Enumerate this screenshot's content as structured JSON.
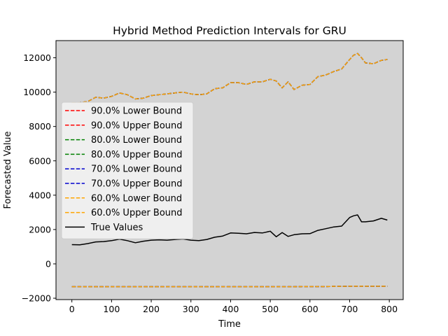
{
  "chart_data": {
    "type": "line",
    "title": "Hybrid Method Prediction Intervals for GRU",
    "xlabel": "Time",
    "ylabel": "Forecasted Value",
    "xlim": [
      -40,
      835
    ],
    "ylim": [
      -2080,
      13000
    ],
    "xticks": [
      0,
      100,
      200,
      300,
      400,
      500,
      600,
      700,
      800
    ],
    "yticks": [
      -2000,
      0,
      2000,
      4000,
      6000,
      8000,
      10000,
      12000
    ],
    "background": "#d3d3d3",
    "grid": false,
    "legend_position": "center-left",
    "x": [
      0,
      20,
      40,
      60,
      80,
      100,
      120,
      140,
      160,
      180,
      200,
      220,
      240,
      260,
      280,
      300,
      320,
      340,
      360,
      380,
      400,
      420,
      440,
      460,
      480,
      500,
      515,
      530,
      545,
      560,
      580,
      600,
      620,
      640,
      660,
      680,
      700,
      710,
      720,
      730,
      740,
      760,
      780,
      795
    ],
    "series": [
      {
        "name": "90.0% Lower Bound",
        "color": "#ff0000",
        "style": "dashed",
        "values": [
          -1330,
          -1330,
          -1330,
          -1330,
          -1330,
          -1330,
          -1330,
          -1330,
          -1330,
          -1330,
          -1330,
          -1330,
          -1330,
          -1330,
          -1330,
          -1330,
          -1330,
          -1330,
          -1330,
          -1330,
          -1330,
          -1330,
          -1330,
          -1330,
          -1330,
          -1330,
          -1330,
          -1330,
          -1330,
          -1330,
          -1320,
          -1320,
          -1320,
          -1320,
          -1310,
          -1310,
          -1300,
          -1300,
          -1300,
          -1300,
          -1300,
          -1300,
          -1300,
          -1300
        ]
      },
      {
        "name": "90.0% Upper Bound",
        "color": "#ff0000",
        "style": "dashed",
        "values": [
          9400,
          9400,
          9450,
          9700,
          9650,
          9750,
          9950,
          9850,
          9600,
          9650,
          9800,
          9850,
          9900,
          9950,
          10000,
          9900,
          9850,
          9900,
          10200,
          10250,
          10550,
          10550,
          10450,
          10600,
          10600,
          10750,
          10650,
          10250,
          10600,
          10150,
          10400,
          10450,
          10900,
          11000,
          11200,
          11350,
          11900,
          12150,
          12250,
          12000,
          11700,
          11650,
          11850,
          11900
        ]
      },
      {
        "name": "80.0% Lower Bound",
        "color": "#008000",
        "style": "dashed",
        "values": [
          -1330,
          -1330,
          -1330,
          -1330,
          -1330,
          -1330,
          -1330,
          -1330,
          -1330,
          -1330,
          -1330,
          -1330,
          -1330,
          -1330,
          -1330,
          -1330,
          -1330,
          -1330,
          -1330,
          -1330,
          -1330,
          -1330,
          -1330,
          -1330,
          -1330,
          -1330,
          -1330,
          -1330,
          -1330,
          -1330,
          -1320,
          -1320,
          -1320,
          -1320,
          -1310,
          -1310,
          -1300,
          -1300,
          -1300,
          -1300,
          -1300,
          -1300,
          -1300,
          -1300
        ]
      },
      {
        "name": "80.0% Upper Bound",
        "color": "#008000",
        "style": "dashed",
        "values": [
          9400,
          9400,
          9450,
          9700,
          9650,
          9750,
          9950,
          9850,
          9600,
          9650,
          9800,
          9850,
          9900,
          9950,
          10000,
          9900,
          9850,
          9900,
          10200,
          10250,
          10550,
          10550,
          10450,
          10600,
          10600,
          10750,
          10650,
          10250,
          10600,
          10150,
          10400,
          10450,
          10900,
          11000,
          11200,
          11350,
          11900,
          12150,
          12250,
          12000,
          11700,
          11650,
          11850,
          11900
        ]
      },
      {
        "name": "70.0% Lower Bound",
        "color": "#0000cd",
        "style": "dashed",
        "values": [
          -1330,
          -1330,
          -1330,
          -1330,
          -1330,
          -1330,
          -1330,
          -1330,
          -1330,
          -1330,
          -1330,
          -1330,
          -1330,
          -1330,
          -1330,
          -1330,
          -1330,
          -1330,
          -1330,
          -1330,
          -1330,
          -1330,
          -1330,
          -1330,
          -1330,
          -1330,
          -1330,
          -1330,
          -1330,
          -1330,
          -1320,
          -1320,
          -1320,
          -1320,
          -1310,
          -1310,
          -1300,
          -1300,
          -1300,
          -1300,
          -1300,
          -1300,
          -1300,
          -1300
        ]
      },
      {
        "name": "70.0% Upper Bound",
        "color": "#0000cd",
        "style": "dashed",
        "values": [
          9400,
          9400,
          9450,
          9700,
          9650,
          9750,
          9950,
          9850,
          9600,
          9650,
          9800,
          9850,
          9900,
          9950,
          10000,
          9900,
          9850,
          9900,
          10200,
          10250,
          10550,
          10550,
          10450,
          10600,
          10600,
          10750,
          10650,
          10250,
          10600,
          10150,
          10400,
          10450,
          10900,
          11000,
          11200,
          11350,
          11900,
          12150,
          12250,
          12000,
          11700,
          11650,
          11850,
          11900
        ]
      },
      {
        "name": "60.0% Lower Bound",
        "color": "#ffa500",
        "style": "dashed",
        "values": [
          -1330,
          -1330,
          -1330,
          -1330,
          -1330,
          -1330,
          -1330,
          -1330,
          -1330,
          -1330,
          -1330,
          -1330,
          -1330,
          -1330,
          -1330,
          -1330,
          -1330,
          -1330,
          -1330,
          -1330,
          -1330,
          -1330,
          -1330,
          -1330,
          -1330,
          -1330,
          -1330,
          -1330,
          -1330,
          -1330,
          -1320,
          -1320,
          -1320,
          -1320,
          -1310,
          -1310,
          -1300,
          -1300,
          -1300,
          -1300,
          -1300,
          -1300,
          -1300,
          -1300
        ]
      },
      {
        "name": "60.0% Upper Bound",
        "color": "#ffa500",
        "style": "dashed",
        "values": [
          9400,
          9400,
          9450,
          9700,
          9650,
          9750,
          9950,
          9850,
          9600,
          9650,
          9800,
          9850,
          9900,
          9950,
          10000,
          9900,
          9850,
          9900,
          10200,
          10250,
          10550,
          10550,
          10450,
          10600,
          10600,
          10750,
          10650,
          10250,
          10600,
          10150,
          10400,
          10450,
          10900,
          11000,
          11200,
          11350,
          11900,
          12150,
          12250,
          12000,
          11700,
          11650,
          11850,
          11900
        ]
      },
      {
        "name": "True Values",
        "color": "#000000",
        "style": "solid",
        "values": [
          1120,
          1110,
          1180,
          1280,
          1300,
          1350,
          1440,
          1350,
          1230,
          1320,
          1380,
          1400,
          1380,
          1420,
          1450,
          1380,
          1350,
          1420,
          1550,
          1620,
          1800,
          1780,
          1750,
          1830,
          1800,
          1900,
          1580,
          1820,
          1600,
          1700,
          1750,
          1760,
          1950,
          2050,
          2150,
          2200,
          2700,
          2800,
          2850,
          2450,
          2450,
          2500,
          2650,
          2550
        ]
      }
    ]
  }
}
